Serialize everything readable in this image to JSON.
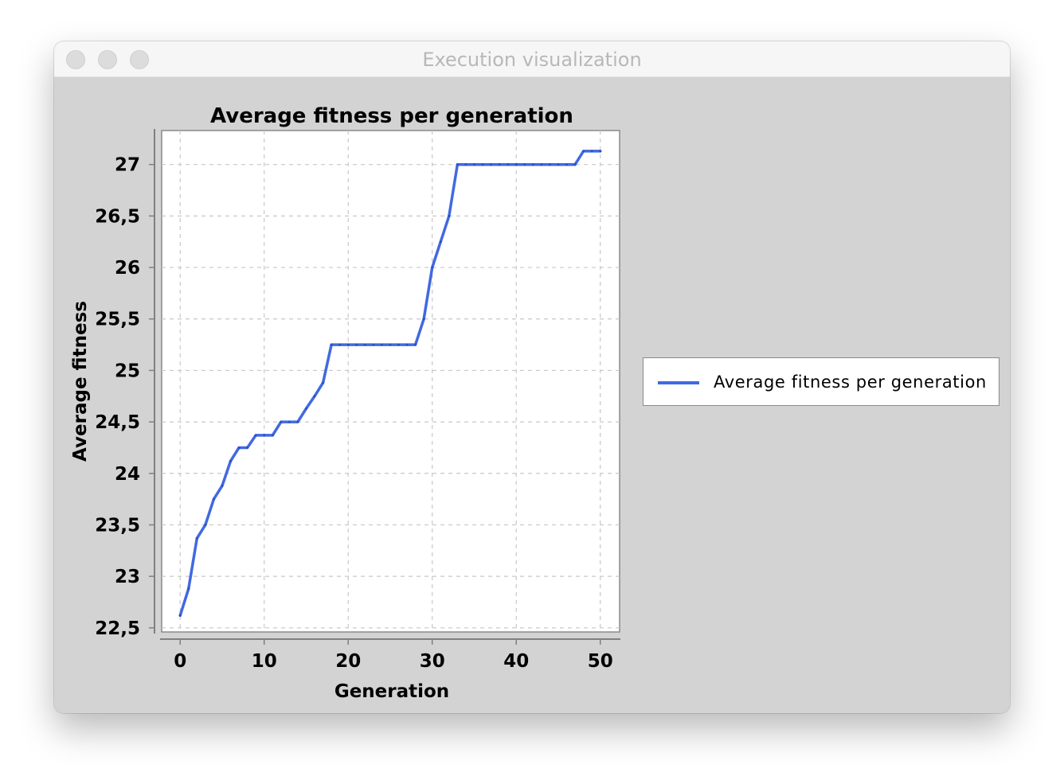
{
  "window": {
    "title": "Execution visualization"
  },
  "colors": {
    "series": "#4169e1",
    "window_bg": "#d3d3d3",
    "plot_bg": "#ffffff",
    "grid": "#c8c8c8"
  },
  "chart_data": {
    "type": "line",
    "title": "Average fitness per generation",
    "xlabel": "Generation",
    "ylabel": "Average fitness",
    "xlim": [
      -2.2,
      52.3
    ],
    "ylim": [
      22.46,
      27.33
    ],
    "xticks": [
      0,
      10,
      20,
      30,
      40,
      50
    ],
    "xtick_labels": [
      "0",
      "10",
      "20",
      "30",
      "40",
      "50"
    ],
    "yticks": [
      22.5,
      23,
      23.5,
      24,
      24.5,
      25,
      25.5,
      26,
      26.5,
      27
    ],
    "ytick_labels": [
      "22,5",
      "23",
      "23,5",
      "24",
      "24,5",
      "25",
      "25,5",
      "26",
      "26,5",
      "27"
    ],
    "grid": true,
    "legend_position": "right",
    "series": [
      {
        "name": "Average fitness per generation",
        "color": "#4169e1",
        "x": [
          0,
          1,
          2,
          3,
          4,
          5,
          6,
          7,
          8,
          9,
          10,
          11,
          12,
          13,
          14,
          15,
          16,
          17,
          18,
          19,
          20,
          21,
          22,
          23,
          24,
          25,
          26,
          27,
          28,
          29,
          30,
          31,
          32,
          33,
          34,
          35,
          36,
          37,
          38,
          39,
          40,
          41,
          42,
          43,
          44,
          45,
          46,
          47,
          48,
          49,
          50
        ],
        "y": [
          22.62,
          22.88,
          23.37,
          23.5,
          23.75,
          23.88,
          24.12,
          24.25,
          24.25,
          24.37,
          24.37,
          24.37,
          24.5,
          24.5,
          24.5,
          24.63,
          24.75,
          24.88,
          25.25,
          25.25,
          25.25,
          25.25,
          25.25,
          25.25,
          25.25,
          25.25,
          25.25,
          25.25,
          25.25,
          25.5,
          26.0,
          26.25,
          26.5,
          27.0,
          27.0,
          27.0,
          27.0,
          27.0,
          27.0,
          27.0,
          27.0,
          27.0,
          27.0,
          27.0,
          27.0,
          27.0,
          27.0,
          27.0,
          27.13,
          27.13,
          27.13
        ]
      }
    ]
  }
}
